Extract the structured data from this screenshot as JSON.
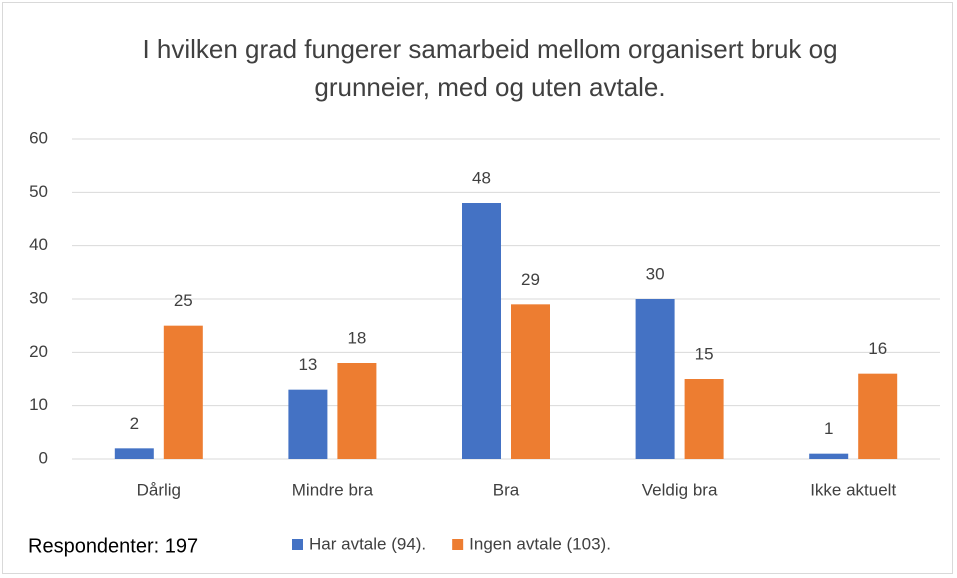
{
  "chart_data": {
    "type": "bar",
    "title": "I hvilken grad fungerer samarbeid mellom organisert bruk og grunneier, med og uten avtale.",
    "categories": [
      "Dårlig",
      "Mindre bra",
      "Bra",
      "Veldig bra",
      "Ikke aktuelt"
    ],
    "series": [
      {
        "name": "Har avtale (94).",
        "color": "#4472c4",
        "values": [
          2,
          13,
          48,
          30,
          1
        ]
      },
      {
        "name": "Ingen avtale (103).",
        "color": "#ed7d31",
        "values": [
          25,
          18,
          29,
          15,
          16
        ]
      }
    ],
    "ylim": [
      0,
      60
    ],
    "yticks": [
      0,
      10,
      20,
      30,
      40,
      50,
      60
    ],
    "grid": true,
    "annotation": "Respondenter: 197",
    "legend": "bottom"
  }
}
